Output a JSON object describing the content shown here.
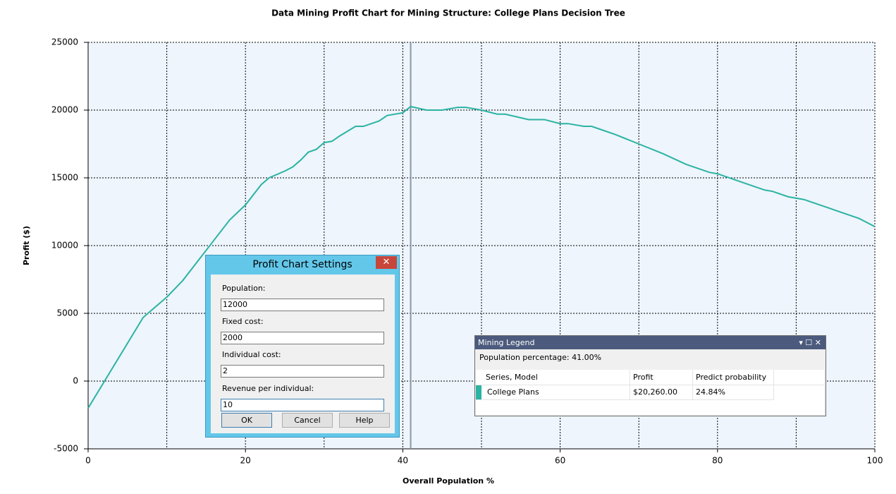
{
  "chart_data": {
    "type": "line",
    "title": "Data Mining Profit Chart for Mining Structure: College Plans Decision Tree",
    "x_label": "Overall Population %",
    "y_label": "Profit ($)",
    "x": [
      0,
      7,
      10,
      12,
      14,
      16,
      18,
      20,
      22,
      23,
      25,
      26,
      27,
      28,
      29,
      30,
      31,
      32,
      34,
      35,
      37,
      38,
      40,
      41,
      43,
      45,
      47,
      48,
      50,
      52,
      53,
      56,
      57,
      58,
      60,
      61,
      63,
      64,
      65,
      67,
      70,
      73,
      76,
      77,
      79,
      80,
      83,
      86,
      87,
      89,
      91,
      92,
      94,
      96,
      98,
      99,
      100
    ],
    "series": [
      {
        "name": "College Plans",
        "color": "#2bb3a3",
        "values": [
          -2000,
          4700,
          6200,
          7400,
          8900,
          10400,
          11900,
          13000,
          14500,
          15000,
          15500,
          15800,
          16300,
          16900,
          17100,
          17600,
          17700,
          18100,
          18800,
          18800,
          19200,
          19600,
          19800,
          20260,
          20000,
          20000,
          20200,
          20200,
          20000,
          19700,
          19700,
          19300,
          19300,
          19300,
          19000,
          19000,
          18800,
          18800,
          18600,
          18200,
          17500,
          16800,
          16000,
          15800,
          15400,
          15300,
          14700,
          14100,
          14000,
          13600,
          13400,
          13200,
          12800,
          12400,
          12000,
          11700,
          11400
        ]
      }
    ],
    "xlim": [
      0,
      100
    ],
    "xticks": [
      0,
      20,
      40,
      60,
      80,
      100
    ],
    "ylim": [
      -5000,
      25000
    ],
    "yticks": [
      -5000,
      0,
      5000,
      10000,
      15000,
      20000,
      25000
    ],
    "grid": true,
    "cursor_x": 41
  },
  "settings_dialog": {
    "title": "Profit Chart Settings",
    "fields": [
      {
        "label": "Population:",
        "value": "12000"
      },
      {
        "label": "Fixed cost:",
        "value": "2000"
      },
      {
        "label": "Individual cost:",
        "value": "2"
      },
      {
        "label": "Revenue per individual:",
        "value": "10"
      }
    ],
    "buttons": [
      "OK",
      "Cancel",
      "Help"
    ]
  },
  "mining_legend": {
    "title": "Mining Legend",
    "summary": "Population percentage: 41.00%",
    "columns": [
      "Series, Model",
      "Profit",
      "Predict probability"
    ],
    "rows": [
      [
        "College Plans",
        "$20,260.00",
        "24.84%"
      ]
    ]
  }
}
